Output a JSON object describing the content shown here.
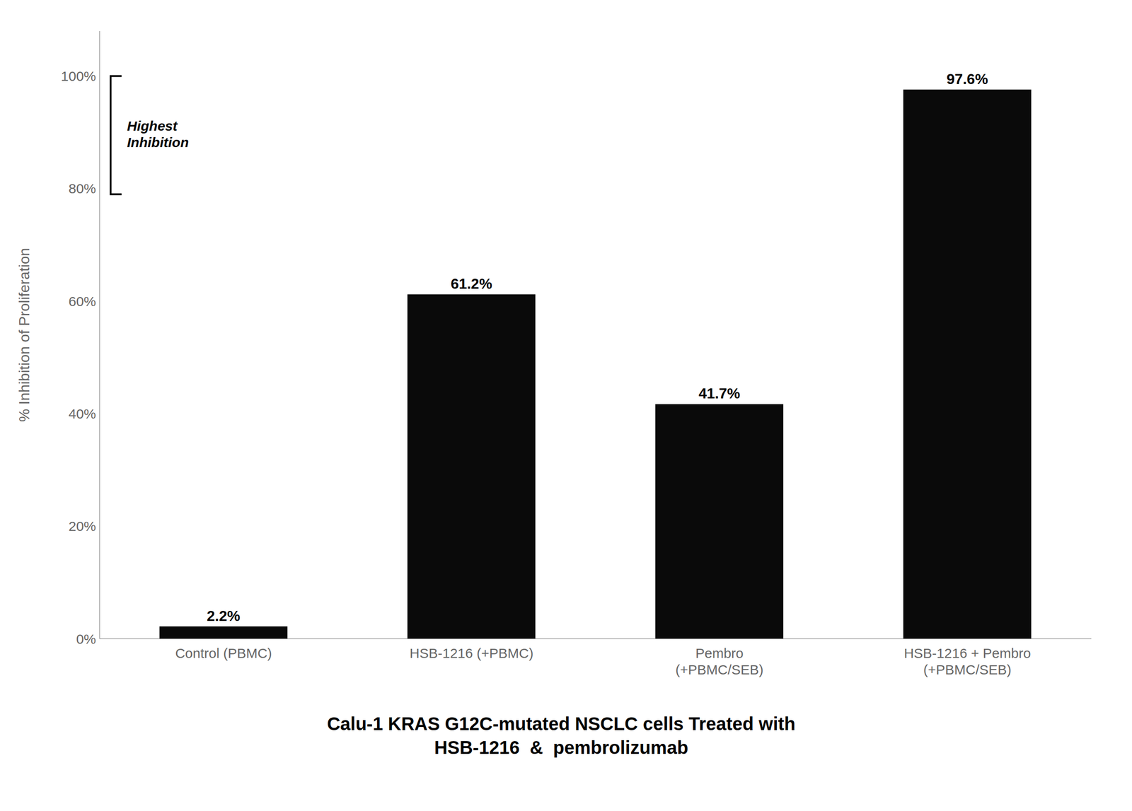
{
  "chart_data": {
    "type": "bar",
    "title": "Calu-1 KRAS G12C-mutated NSCLC cells Treated with\nHSB-1216  &  pembrolizumab",
    "categories": [
      "Control (PBMC)",
      "HSB-1216 (+PBMC)",
      "Pembro\n(+PBMC/SEB)",
      "HSB-1216 + Pembro\n(+PBMC/SEB)"
    ],
    "values": [
      2.2,
      61.2,
      41.7,
      97.6
    ],
    "value_labels": [
      "2.2%",
      "61.2%",
      "41.7%",
      "97.6%"
    ],
    "data_labels": true,
    "color": "#0a0a0a",
    "ylabel": "% Inhibition of Proliferation",
    "ylim": [
      0,
      108
    ],
    "yticks": [
      {
        "value": 0,
        "label": "0%"
      },
      {
        "value": 20,
        "label": "20%"
      },
      {
        "value": 40,
        "label": "40%"
      },
      {
        "value": 60,
        "label": "60%"
      },
      {
        "value": 80,
        "label": "80%"
      },
      {
        "value": 100,
        "label": "100%"
      }
    ],
    "grid": false,
    "annotation": {
      "text": "Highest\nInhibition",
      "y_range": [
        79,
        100
      ]
    }
  }
}
